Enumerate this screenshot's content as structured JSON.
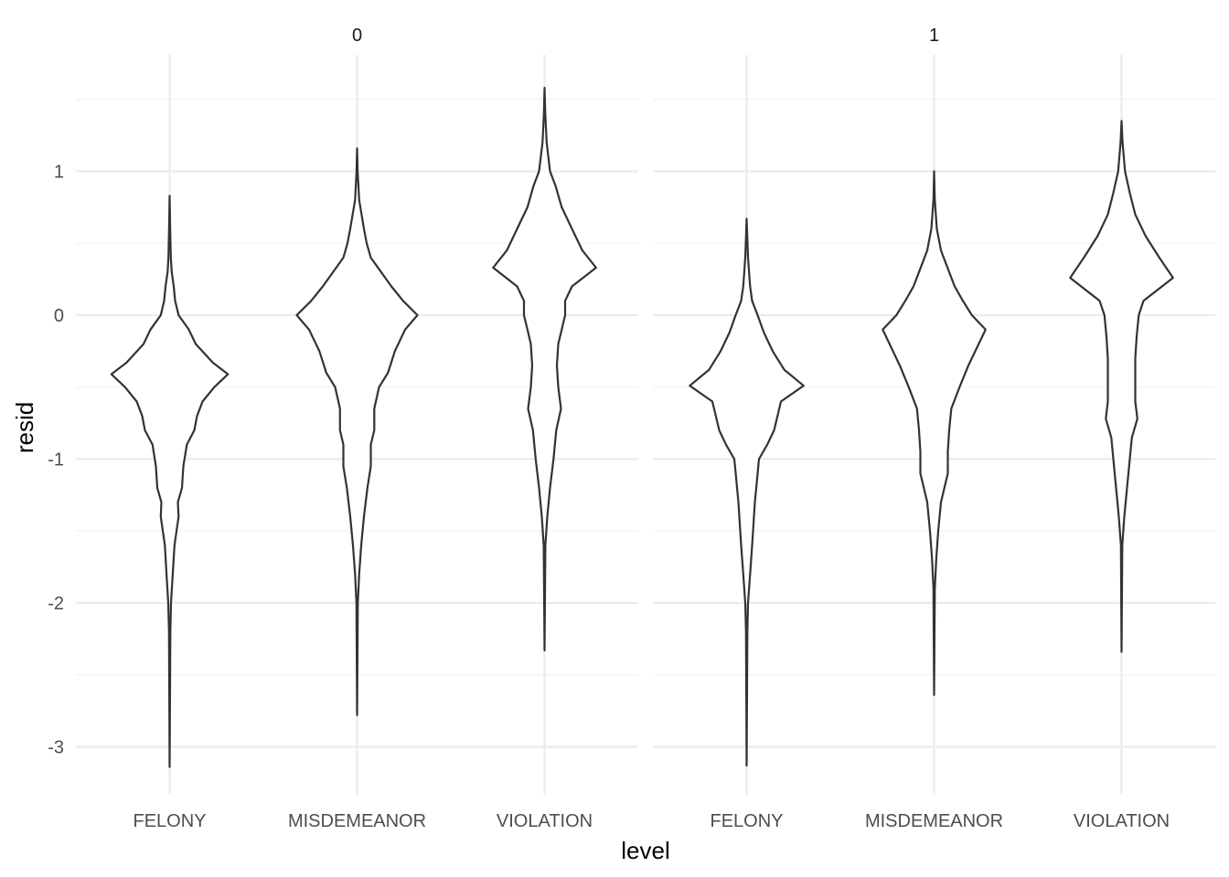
{
  "chart_data": {
    "type": "violin",
    "xlabel": "level",
    "ylabel": "resid",
    "categories": [
      "FELONY",
      "MISDEMEANOR",
      "VIOLATION"
    ],
    "ylim": [
      -3.3,
      1.8
    ],
    "yticks": [
      -3,
      -2,
      -1,
      0,
      1
    ],
    "grid": true,
    "legend": "none",
    "panels": [
      {
        "label": "0",
        "violins": [
          {
            "category": "FELONY",
            "min": -3.14,
            "max": 0.83,
            "profile": [
              [
                -3.14,
                0.0
              ],
              [
                -2.2,
                0.01
              ],
              [
                -2.0,
                0.02
              ],
              [
                -1.8,
                0.045
              ],
              [
                -1.6,
                0.07
              ],
              [
                -1.4,
                0.13
              ],
              [
                -1.3,
                0.12
              ],
              [
                -1.2,
                0.18
              ],
              [
                -1.05,
                0.2
              ],
              [
                -0.9,
                0.25
              ],
              [
                -0.8,
                0.36
              ],
              [
                -0.7,
                0.4
              ],
              [
                -0.6,
                0.48
              ],
              [
                -0.5,
                0.65
              ],
              [
                -0.41,
                0.85
              ],
              [
                -0.33,
                0.63
              ],
              [
                -0.2,
                0.38
              ],
              [
                -0.1,
                0.28
              ],
              [
                0.0,
                0.13
              ],
              [
                0.1,
                0.08
              ],
              [
                0.2,
                0.06
              ],
              [
                0.3,
                0.03
              ],
              [
                0.4,
                0.018
              ],
              [
                0.6,
                0.008
              ],
              [
                0.83,
                0.0
              ]
            ]
          },
          {
            "category": "MISDEMEANOR",
            "min": -2.78,
            "max": 1.16,
            "profile": [
              [
                -2.78,
                0.0
              ],
              [
                -2.0,
                0.01
              ],
              [
                -1.8,
                0.03
              ],
              [
                -1.6,
                0.06
              ],
              [
                -1.4,
                0.1
              ],
              [
                -1.2,
                0.15
              ],
              [
                -1.05,
                0.2
              ],
              [
                -0.9,
                0.2
              ],
              [
                -0.8,
                0.25
              ],
              [
                -0.65,
                0.25
              ],
              [
                -0.5,
                0.32
              ],
              [
                -0.4,
                0.45
              ],
              [
                -0.25,
                0.55
              ],
              [
                -0.1,
                0.7
              ],
              [
                0.0,
                0.88
              ],
              [
                0.1,
                0.67
              ],
              [
                0.2,
                0.5
              ],
              [
                0.3,
                0.35
              ],
              [
                0.4,
                0.2
              ],
              [
                0.5,
                0.14
              ],
              [
                0.6,
                0.1
              ],
              [
                0.8,
                0.03
              ],
              [
                1.0,
                0.008
              ],
              [
                1.16,
                0.0
              ]
            ]
          },
          {
            "category": "VIOLATION",
            "min": -2.33,
            "max": 1.58,
            "profile": [
              [
                -2.33,
                0.0
              ],
              [
                -1.6,
                0.012
              ],
              [
                -1.4,
                0.04
              ],
              [
                -1.2,
                0.08
              ],
              [
                -1.0,
                0.13
              ],
              [
                -0.8,
                0.17
              ],
              [
                -0.65,
                0.24
              ],
              [
                -0.5,
                0.2
              ],
              [
                -0.35,
                0.18
              ],
              [
                -0.2,
                0.2
              ],
              [
                -0.1,
                0.25
              ],
              [
                0.0,
                0.3
              ],
              [
                0.1,
                0.3
              ],
              [
                0.2,
                0.4
              ],
              [
                0.33,
                0.75
              ],
              [
                0.45,
                0.55
              ],
              [
                0.6,
                0.4
              ],
              [
                0.75,
                0.25
              ],
              [
                0.9,
                0.16
              ],
              [
                1.0,
                0.08
              ],
              [
                1.2,
                0.03
              ],
              [
                1.4,
                0.01
              ],
              [
                1.58,
                0.0
              ]
            ]
          }
        ]
      },
      {
        "label": "1",
        "violins": [
          {
            "category": "FELONY",
            "min": -3.13,
            "max": 0.67,
            "profile": [
              [
                -3.13,
                0.0
              ],
              [
                -2.2,
                0.01
              ],
              [
                -2.0,
                0.02
              ],
              [
                -1.8,
                0.05
              ],
              [
                -1.6,
                0.08
              ],
              [
                -1.45,
                0.1
              ],
              [
                -1.3,
                0.12
              ],
              [
                -1.15,
                0.15
              ],
              [
                -1.0,
                0.18
              ],
              [
                -0.9,
                0.3
              ],
              [
                -0.8,
                0.4
              ],
              [
                -0.7,
                0.45
              ],
              [
                -0.6,
                0.5
              ],
              [
                -0.49,
                0.83
              ],
              [
                -0.38,
                0.55
              ],
              [
                -0.25,
                0.38
              ],
              [
                -0.12,
                0.25
              ],
              [
                0.0,
                0.16
              ],
              [
                0.1,
                0.08
              ],
              [
                0.2,
                0.05
              ],
              [
                0.4,
                0.02
              ],
              [
                0.67,
                0.0
              ]
            ]
          },
          {
            "category": "MISDEMEANOR",
            "min": -2.64,
            "max": 1.0,
            "profile": [
              [
                -2.64,
                0.0
              ],
              [
                -1.9,
                0.01
              ],
              [
                -1.7,
                0.03
              ],
              [
                -1.5,
                0.06
              ],
              [
                -1.3,
                0.1
              ],
              [
                -1.1,
                0.2
              ],
              [
                -0.95,
                0.2
              ],
              [
                -0.8,
                0.22
              ],
              [
                -0.65,
                0.25
              ],
              [
                -0.5,
                0.37
              ],
              [
                -0.35,
                0.5
              ],
              [
                -0.2,
                0.65
              ],
              [
                -0.1,
                0.75
              ],
              [
                0.0,
                0.55
              ],
              [
                0.1,
                0.42
              ],
              [
                0.2,
                0.3
              ],
              [
                0.3,
                0.22
              ],
              [
                0.45,
                0.1
              ],
              [
                0.6,
                0.04
              ],
              [
                0.8,
                0.01
              ],
              [
                1.0,
                0.0
              ]
            ]
          },
          {
            "category": "VIOLATION",
            "min": -2.34,
            "max": 1.35,
            "profile": [
              [
                -2.34,
                0.0
              ],
              [
                -1.6,
                0.01
              ],
              [
                -1.4,
                0.04
              ],
              [
                -1.2,
                0.08
              ],
              [
                -1.0,
                0.12
              ],
              [
                -0.85,
                0.15
              ],
              [
                -0.72,
                0.23
              ],
              [
                -0.6,
                0.2
              ],
              [
                -0.45,
                0.2
              ],
              [
                -0.3,
                0.2
              ],
              [
                -0.15,
                0.22
              ],
              [
                0.0,
                0.25
              ],
              [
                0.1,
                0.32
              ],
              [
                0.26,
                0.75
              ],
              [
                0.4,
                0.55
              ],
              [
                0.55,
                0.35
              ],
              [
                0.7,
                0.2
              ],
              [
                0.85,
                0.12
              ],
              [
                1.0,
                0.05
              ],
              [
                1.2,
                0.015
              ],
              [
                1.35,
                0.0
              ]
            ]
          }
        ]
      }
    ]
  }
}
